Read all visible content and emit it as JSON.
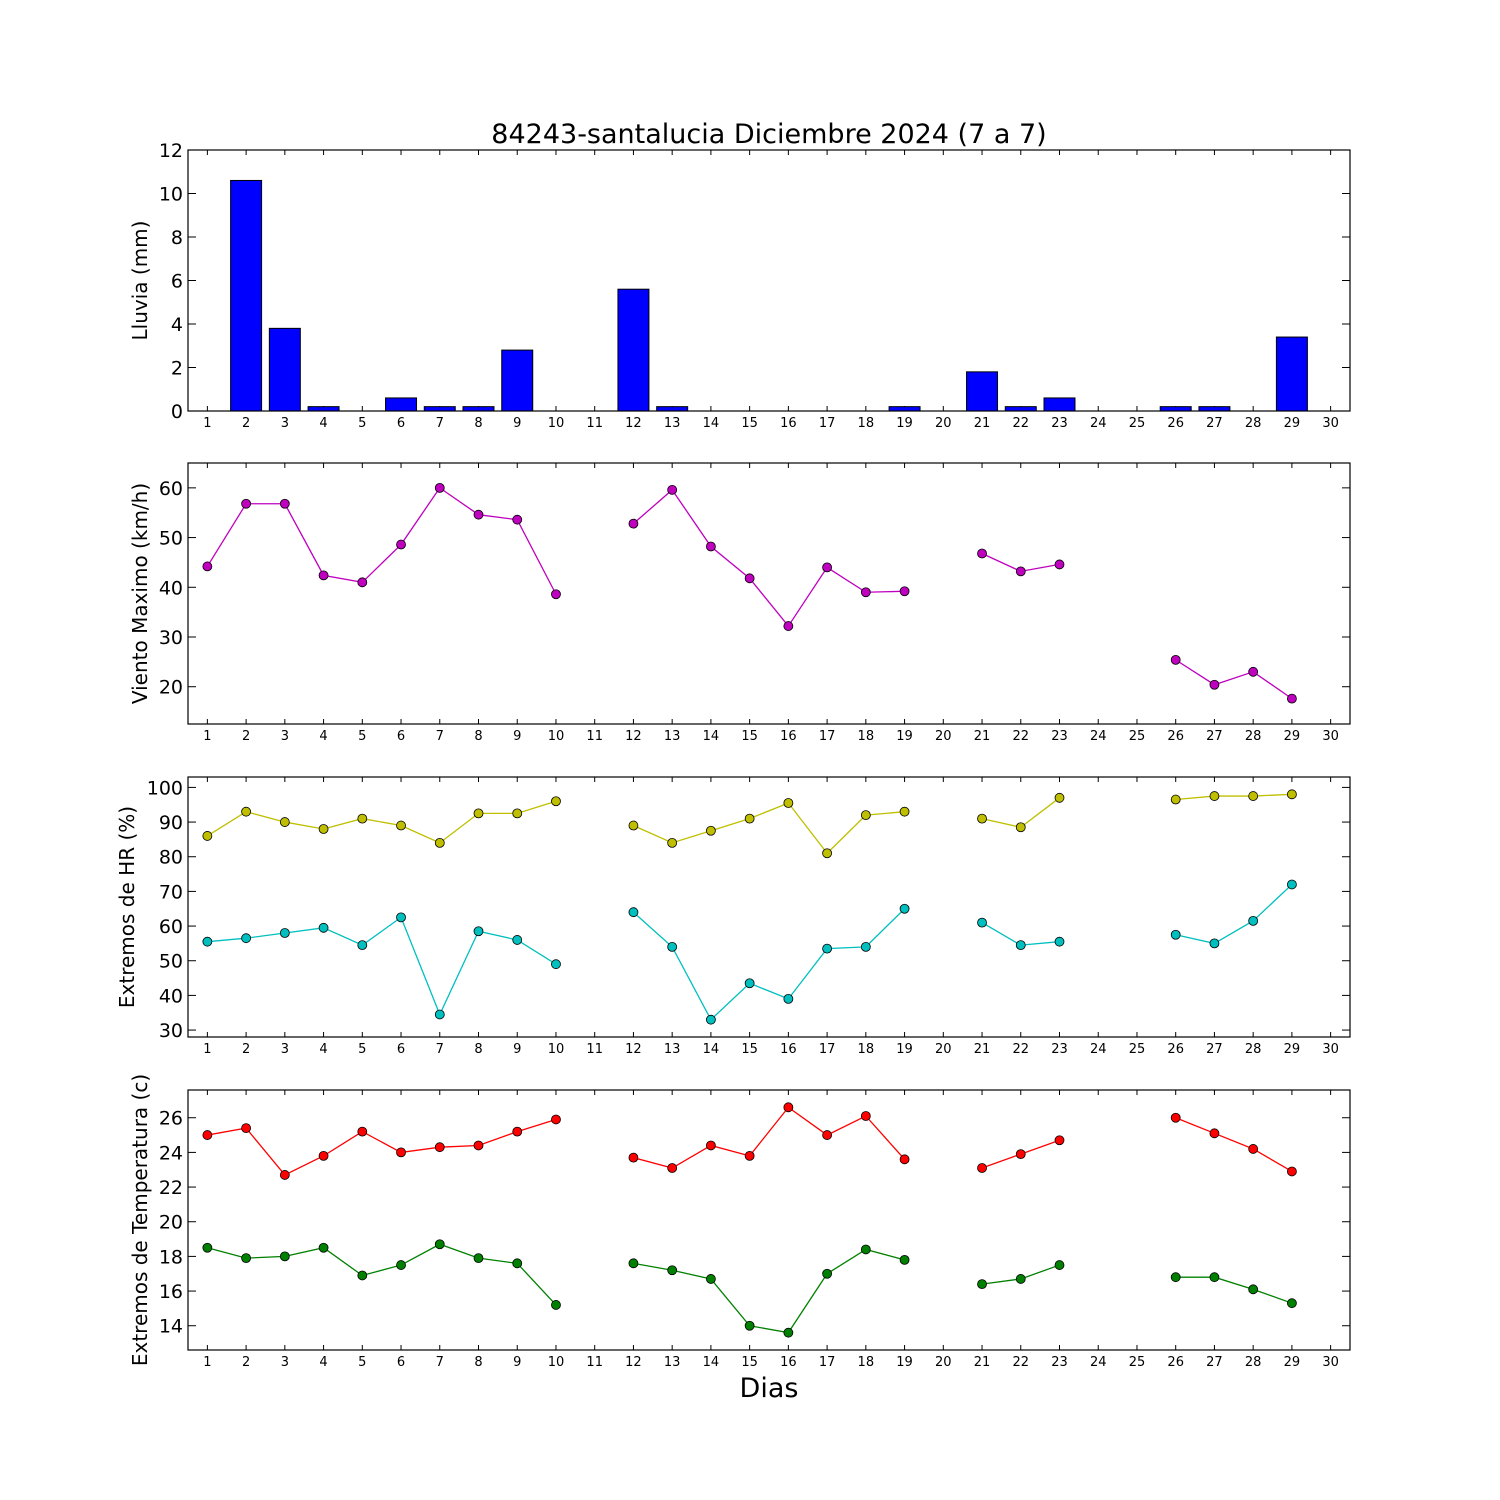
{
  "figure": {
    "title": "84243-santalucia Diciembre 2024  (7 a 7)",
    "xlabel": "Dias"
  },
  "chart_data": [
    {
      "type": "bar",
      "ylabel": "Lluvia (mm)",
      "xlim": [
        0.5,
        30.5
      ],
      "ylim": [
        0,
        12
      ],
      "xticks": [
        1,
        2,
        3,
        4,
        5,
        6,
        7,
        8,
        9,
        10,
        11,
        12,
        13,
        14,
        15,
        16,
        17,
        18,
        19,
        20,
        21,
        22,
        23,
        24,
        25,
        26,
        27,
        28,
        29,
        30
      ],
      "yticks": [
        0,
        2,
        4,
        6,
        8,
        10,
        12
      ],
      "grid": false,
      "series": [
        {
          "color": "#0000ff",
          "x": [
            1,
            2,
            3,
            4,
            5,
            6,
            7,
            8,
            9,
            10,
            11,
            12,
            13,
            14,
            15,
            16,
            17,
            18,
            19,
            20,
            21,
            22,
            23,
            24,
            25,
            26,
            27,
            28,
            29,
            30
          ],
          "values": [
            0,
            10.6,
            3.8,
            0.2,
            0,
            0.6,
            0.2,
            0.2,
            2.8,
            0,
            0,
            5.6,
            0.2,
            0,
            0,
            0,
            0,
            0,
            0.2,
            0,
            1.8,
            0.2,
            0.6,
            0,
            0,
            0.2,
            0.2,
            0,
            3.4,
            0
          ]
        }
      ]
    },
    {
      "type": "line",
      "ylabel": "Viento Maximo (km/h)",
      "xlim": [
        0.5,
        30.5
      ],
      "ylim": [
        12.5,
        65
      ],
      "xticks": [
        1,
        2,
        3,
        4,
        5,
        6,
        7,
        8,
        9,
        10,
        11,
        12,
        13,
        14,
        15,
        16,
        17,
        18,
        19,
        20,
        21,
        22,
        23,
        24,
        25,
        26,
        27,
        28,
        29,
        30
      ],
      "yticks": [
        20,
        30,
        40,
        50,
        60
      ],
      "grid": false,
      "series": [
        {
          "color": "#bf00bf",
          "x": [
            1,
            2,
            3,
            4,
            5,
            6,
            7,
            8,
            9,
            10,
            11,
            12,
            13,
            14,
            15,
            16,
            17,
            18,
            19,
            20,
            21,
            22,
            23,
            24,
            25,
            26,
            27,
            28,
            29,
            30
          ],
          "values": [
            44.2,
            56.8,
            56.8,
            42.4,
            41.0,
            48.6,
            60.0,
            54.6,
            53.6,
            38.6,
            null,
            52.8,
            59.6,
            48.2,
            41.8,
            32.2,
            44.0,
            39.0,
            39.2,
            null,
            46.8,
            43.2,
            44.6,
            null,
            null,
            25.4,
            20.4,
            23.0,
            17.6,
            null
          ]
        }
      ]
    },
    {
      "type": "line",
      "ylabel": "Extremos de HR (%)",
      "xlim": [
        0.5,
        30.5
      ],
      "ylim": [
        28,
        103
      ],
      "xticks": [
        1,
        2,
        3,
        4,
        5,
        6,
        7,
        8,
        9,
        10,
        11,
        12,
        13,
        14,
        15,
        16,
        17,
        18,
        19,
        20,
        21,
        22,
        23,
        24,
        25,
        26,
        27,
        28,
        29,
        30
      ],
      "yticks": [
        30,
        40,
        50,
        60,
        70,
        80,
        90,
        100
      ],
      "grid": false,
      "series": [
        {
          "color": "#bfbf00",
          "x": [
            1,
            2,
            3,
            4,
            5,
            6,
            7,
            8,
            9,
            10,
            11,
            12,
            13,
            14,
            15,
            16,
            17,
            18,
            19,
            20,
            21,
            22,
            23,
            24,
            25,
            26,
            27,
            28,
            29,
            30
          ],
          "values": [
            86,
            93,
            90,
            88,
            91,
            89,
            84,
            92.5,
            92.5,
            96,
            null,
            89,
            84,
            87.5,
            91,
            95.5,
            81,
            92,
            93,
            null,
            91,
            88.5,
            97,
            null,
            null,
            96.5,
            97.5,
            97.5,
            98,
            null
          ]
        },
        {
          "color": "#00bfbf",
          "x": [
            1,
            2,
            3,
            4,
            5,
            6,
            7,
            8,
            9,
            10,
            11,
            12,
            13,
            14,
            15,
            16,
            17,
            18,
            19,
            20,
            21,
            22,
            23,
            24,
            25,
            26,
            27,
            28,
            29,
            30
          ],
          "values": [
            55.5,
            56.5,
            58,
            59.5,
            54.5,
            62.5,
            34.5,
            58.5,
            56,
            49,
            null,
            64,
            54,
            33,
            43.5,
            39,
            53.5,
            54,
            65,
            null,
            61,
            54.5,
            55.5,
            null,
            null,
            57.5,
            55,
            61.5,
            72,
            null
          ]
        }
      ]
    },
    {
      "type": "line",
      "ylabel": "Extremos de Temperatura (c)",
      "xlim": [
        0.5,
        30.5
      ],
      "ylim": [
        12.6,
        27.6
      ],
      "xticks": [
        1,
        2,
        3,
        4,
        5,
        6,
        7,
        8,
        9,
        10,
        11,
        12,
        13,
        14,
        15,
        16,
        17,
        18,
        19,
        20,
        21,
        22,
        23,
        24,
        25,
        26,
        27,
        28,
        29,
        30
      ],
      "yticks": [
        14,
        16,
        18,
        20,
        22,
        24,
        26
      ],
      "grid": false,
      "series": [
        {
          "color": "#ff0000",
          "x": [
            1,
            2,
            3,
            4,
            5,
            6,
            7,
            8,
            9,
            10,
            11,
            12,
            13,
            14,
            15,
            16,
            17,
            18,
            19,
            20,
            21,
            22,
            23,
            24,
            25,
            26,
            27,
            28,
            29,
            30
          ],
          "values": [
            25.0,
            25.4,
            22.7,
            23.8,
            25.2,
            24.0,
            24.3,
            24.4,
            25.2,
            25.9,
            null,
            23.7,
            23.1,
            24.4,
            23.8,
            26.6,
            25.0,
            26.1,
            23.6,
            null,
            23.1,
            23.9,
            24.7,
            null,
            null,
            26.0,
            25.1,
            24.2,
            22.9,
            null
          ]
        },
        {
          "color": "#008000",
          "x": [
            1,
            2,
            3,
            4,
            5,
            6,
            7,
            8,
            9,
            10,
            11,
            12,
            13,
            14,
            15,
            16,
            17,
            18,
            19,
            20,
            21,
            22,
            23,
            24,
            25,
            26,
            27,
            28,
            29,
            30
          ],
          "values": [
            18.5,
            17.9,
            18.0,
            18.5,
            16.9,
            17.5,
            18.7,
            17.9,
            17.6,
            15.2,
            null,
            17.6,
            17.2,
            16.7,
            14.0,
            13.6,
            17.0,
            18.4,
            17.8,
            null,
            16.4,
            16.7,
            17.5,
            null,
            null,
            16.8,
            16.8,
            16.1,
            15.3,
            null
          ]
        }
      ]
    }
  ]
}
